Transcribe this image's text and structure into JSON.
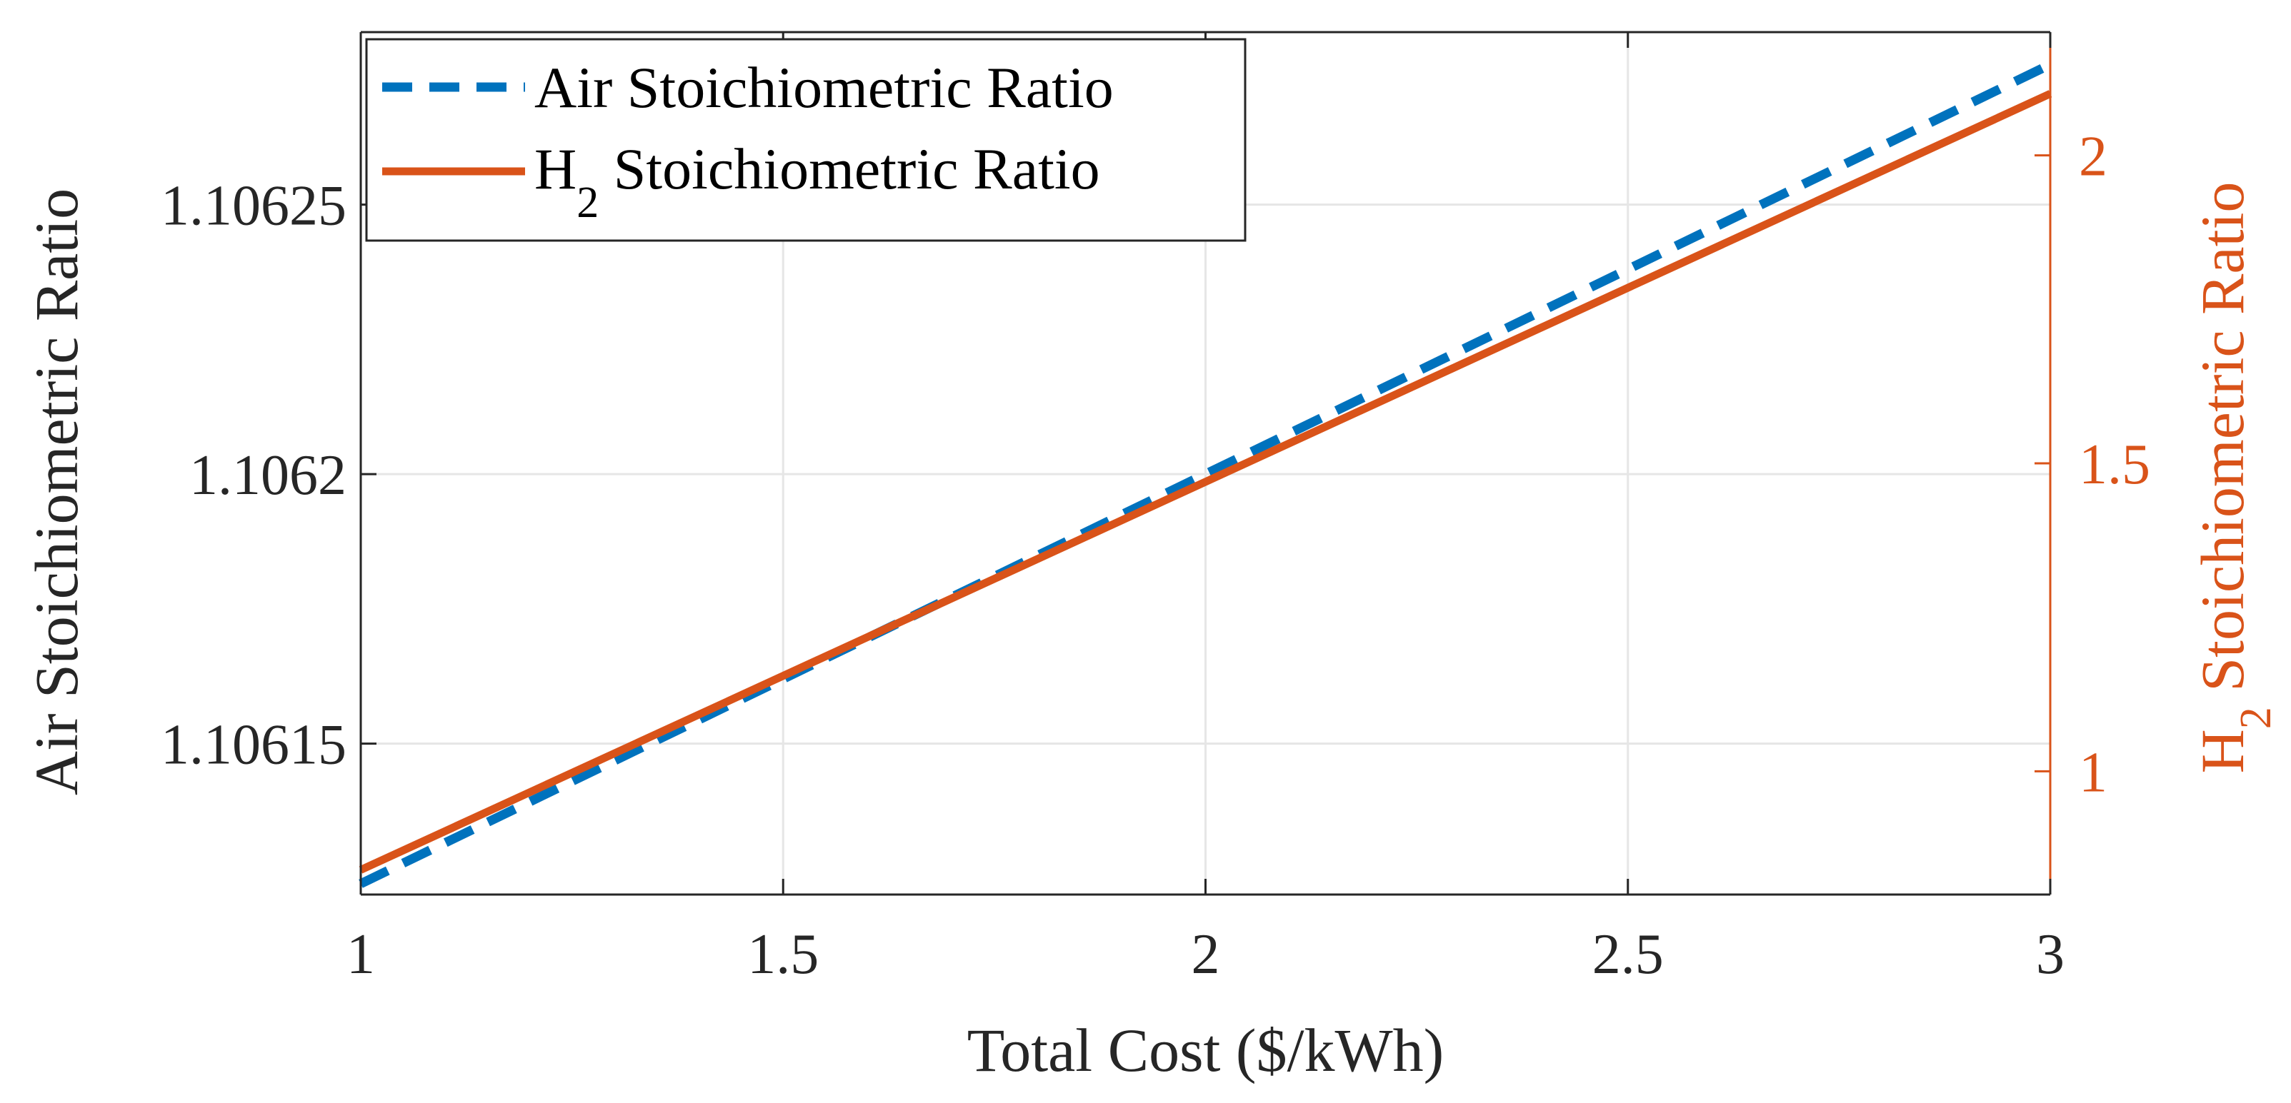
{
  "chart_data": {
    "type": "line",
    "xlabel": "Total Cost ($/kWh)",
    "ylabel_left": "Air Stoichiometric Ratio",
    "ylabel_right": {
      "main": "H",
      "sub": "2",
      "rest": " Stoichiometric Ratio"
    },
    "xlim": [
      1,
      3
    ],
    "ylim_left": [
      1.106122,
      1.106282
    ],
    "ylim_right": [
      0.8,
      2.2
    ],
    "x_ticks": [
      1,
      1.5,
      2,
      2.5,
      3
    ],
    "x_tick_labels": [
      "1",
      "1.5",
      "2",
      "2.5",
      "3"
    ],
    "y_left_ticks": [
      1.10615,
      1.1062,
      1.10625
    ],
    "y_left_tick_labels": [
      "1.10615",
      "1.1062",
      "1.10625"
    ],
    "y_right_ticks": [
      1,
      1.5,
      2
    ],
    "y_right_tick_labels": [
      "1",
      "1.5",
      "2"
    ],
    "grid": true,
    "legend_position": "top-left",
    "series": [
      {
        "name": "Air Stoichiometric Ratio",
        "axis": "left",
        "style": "dashed",
        "color": "#0072BD",
        "x": [
          1,
          3
        ],
        "values": [
          1.106124,
          1.106276
        ]
      },
      {
        "name": "H2 Stoichiometric Ratio",
        "legend": {
          "main": "H",
          "sub": "2",
          "rest": " Stoichiometric Ratio"
        },
        "axis": "right",
        "style": "solid",
        "color": "#D95319",
        "x": [
          1,
          3
        ],
        "values": [
          0.84,
          2.1
        ]
      }
    ]
  }
}
